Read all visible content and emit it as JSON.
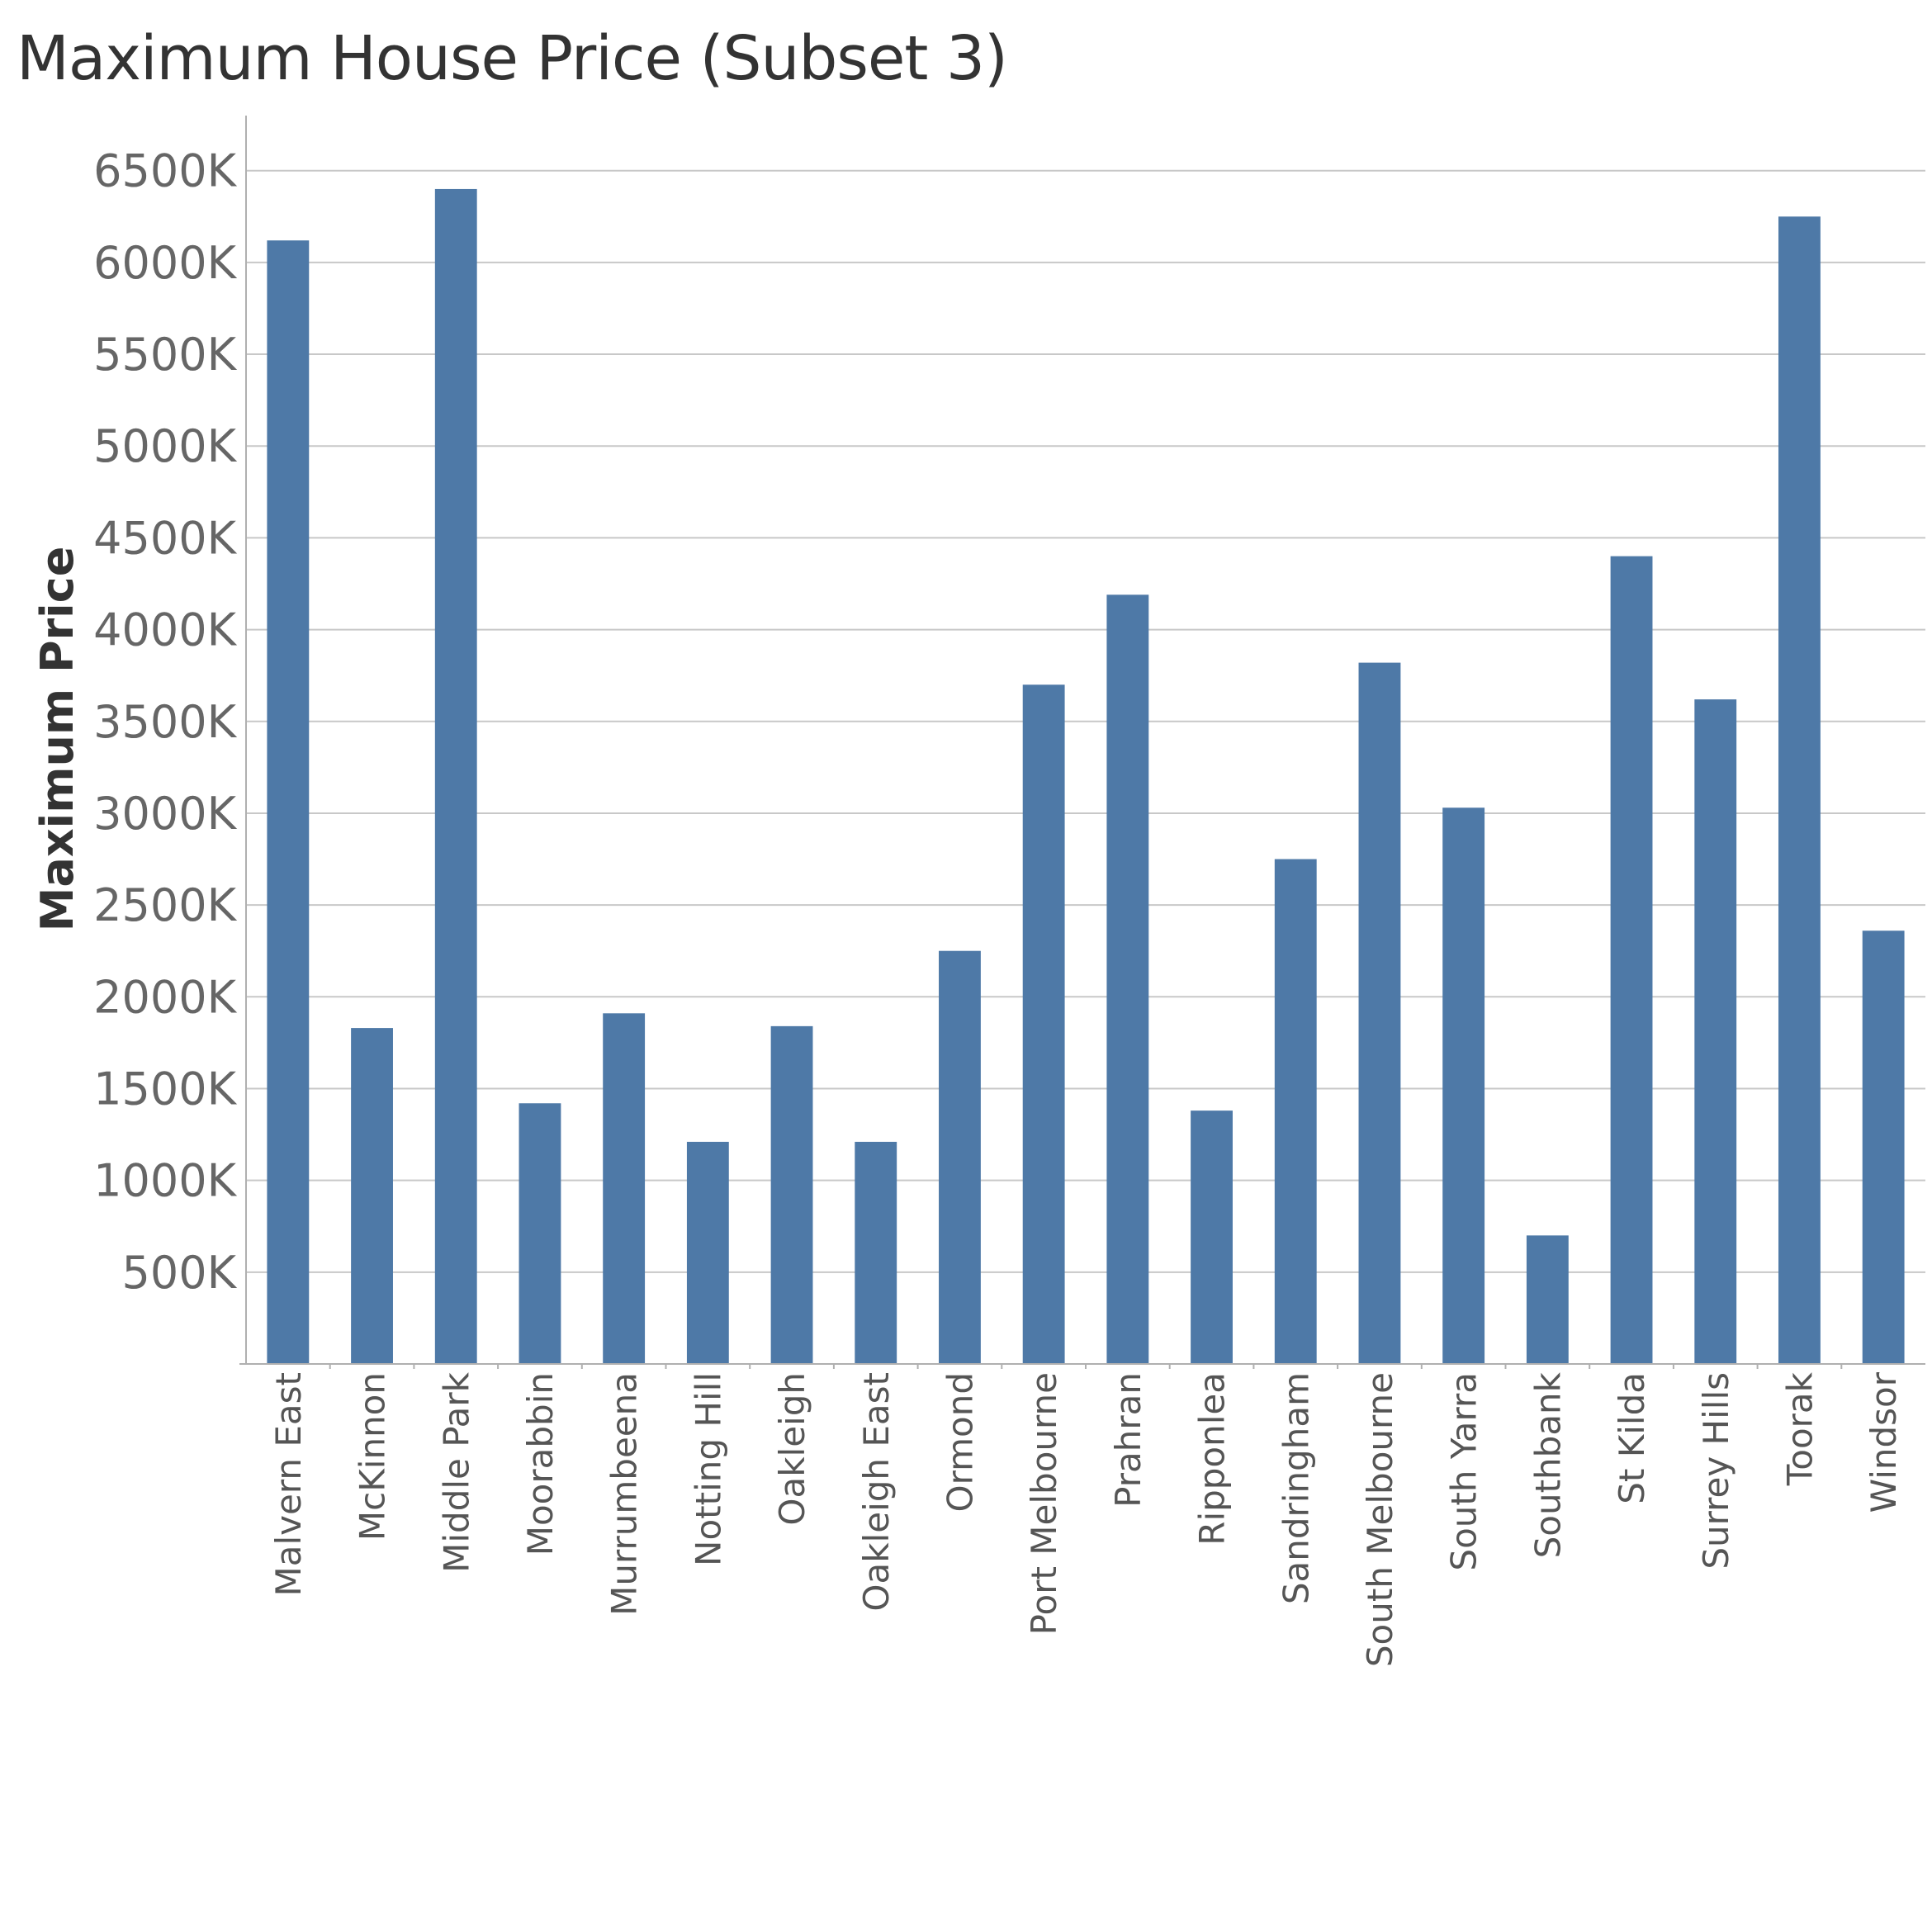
{
  "chart_data": {
    "type": "bar",
    "title": "Maximum House Price (Subset 3)",
    "xlabel": "",
    "ylabel": "Maximum Price",
    "categories": [
      "Malvern East",
      "McKinnon",
      "Middle Park",
      "Moorabbin",
      "Murrumbeena",
      "Notting Hill",
      "Oakleigh",
      "Oakleigh East",
      "Ormond",
      "Port Melbourne",
      "Prahran",
      "Ripponlea",
      "Sandringham",
      "South Melbourne",
      "South Yarra",
      "Southbank",
      "St Kilda",
      "Surrey Hills",
      "Toorak",
      "Windsor"
    ],
    "values": [
      6120000,
      1830000,
      6400000,
      1420000,
      1910000,
      1210000,
      1840000,
      1210000,
      2250000,
      3700000,
      4190000,
      1380000,
      2750000,
      3820000,
      3030000,
      700000,
      4400000,
      3620000,
      6250000,
      2360000
    ],
    "yticks": [
      500000,
      1000000,
      1500000,
      2000000,
      2500000,
      3000000,
      3500000,
      4000000,
      4500000,
      5000000,
      5500000,
      6000000,
      6500000
    ],
    "ytick_labels": [
      "500K",
      "1000K",
      "1500K",
      "2000K",
      "2500K",
      "3000K",
      "3500K",
      "4000K",
      "4500K",
      "5000K",
      "5500K",
      "6000K",
      "6500K"
    ],
    "ylim": [
      0,
      6800000
    ],
    "grid": true,
    "bar_color": "#4e79a7",
    "grid_color": "#c8c8c8",
    "axis_color": "#b0b0b0"
  }
}
